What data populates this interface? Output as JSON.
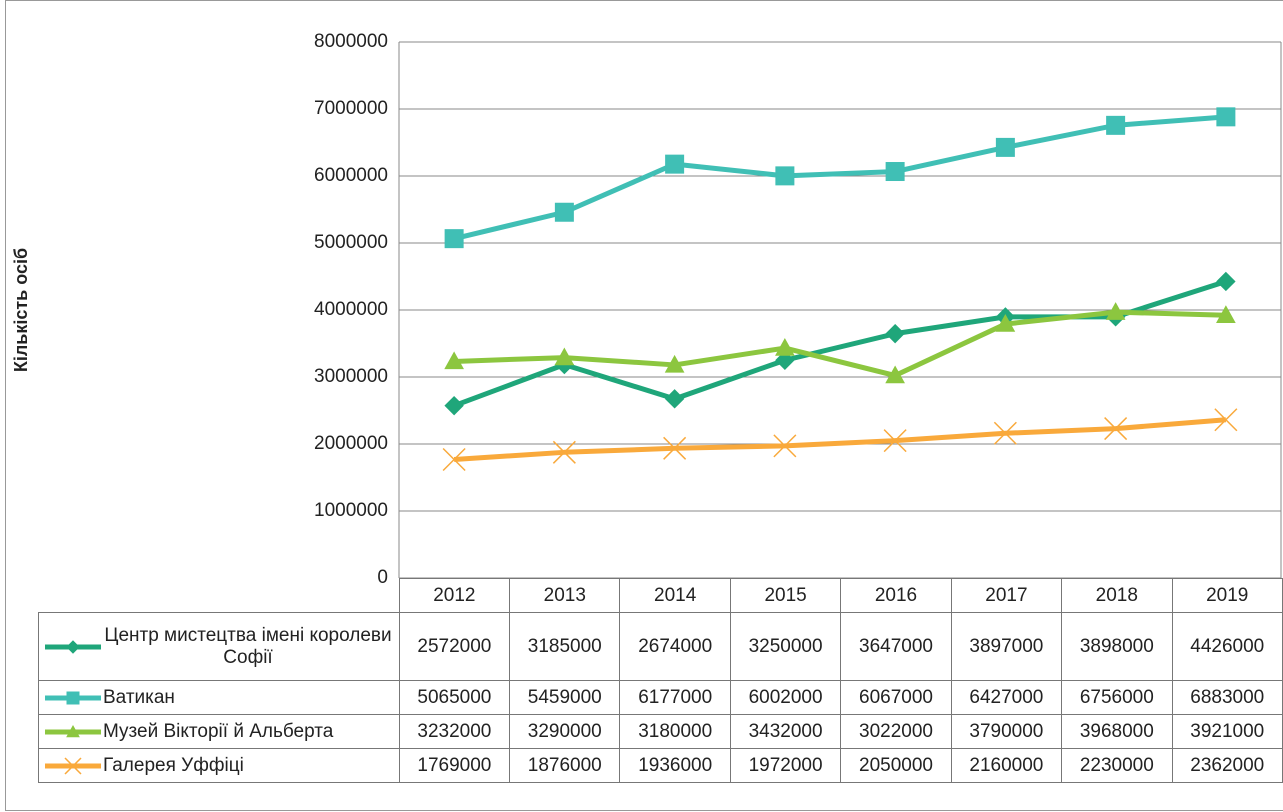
{
  "chart_data": {
    "type": "line",
    "y_label": "Кількість осіб",
    "categories": [
      "2012",
      "2013",
      "2014",
      "2015",
      "2016",
      "2017",
      "2018",
      "2019"
    ],
    "series": [
      {
        "name": "Центр мистецтва імені королеви Софії",
        "color": "#1fa67a",
        "marker": "diamond",
        "values": [
          2572000,
          3185000,
          2674000,
          3250000,
          3647000,
          3897000,
          3898000,
          4426000
        ]
      },
      {
        "name": "Ватикан",
        "color": "#40bfb5",
        "marker": "square",
        "values": [
          5065000,
          5459000,
          6177000,
          6002000,
          6067000,
          6427000,
          6756000,
          6883000
        ]
      },
      {
        "name": "Музей Вікторії й Альберта",
        "color": "#8cc63f",
        "marker": "triangle",
        "values": [
          3232000,
          3290000,
          3180000,
          3432000,
          3022000,
          3790000,
          3968000,
          3921000
        ]
      },
      {
        "name": "Галерея Уффіці",
        "color": "#f9a93b",
        "marker": "x",
        "values": [
          1769000,
          1876000,
          1936000,
          1972000,
          2050000,
          2160000,
          2230000,
          2362000
        ]
      }
    ],
    "ylim": [
      0,
      8000000
    ],
    "yticks": [
      0,
      1000000,
      2000000,
      3000000,
      4000000,
      5000000,
      6000000,
      7000000,
      8000000
    ],
    "grid": true
  }
}
